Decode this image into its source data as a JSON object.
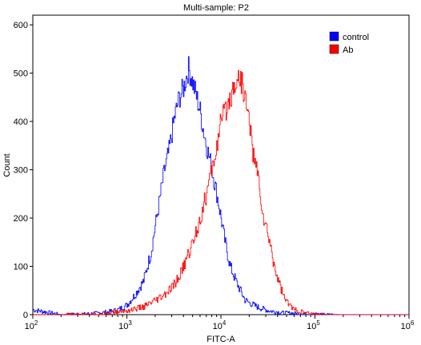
{
  "chart_data": {
    "type": "line",
    "title": "Multi-sample: P2",
    "xlabel": "FITC-A",
    "ylabel": "Count",
    "x_scale": "log",
    "xlim": [
      100,
      1000000
    ],
    "ylim": [
      0,
      620
    ],
    "x_ticks": [
      100,
      1000,
      10000,
      100000,
      1000000
    ],
    "x_tick_labels": [
      {
        "base": "10",
        "exp": "2"
      },
      {
        "base": "10",
        "exp": "3"
      },
      {
        "base": "10",
        "exp": "4"
      },
      {
        "base": "10",
        "exp": "5"
      },
      {
        "base": "10",
        "exp": "6"
      }
    ],
    "y_ticks": [
      0,
      100,
      200,
      300,
      400,
      500,
      600
    ],
    "grid": false,
    "legend_position": "top-right",
    "series": [
      {
        "name": "control",
        "color": "#0000ff",
        "x": [
          100,
          200,
          400,
          600,
          800,
          1000,
          1200,
          1500,
          1800,
          2100,
          2500,
          2800,
          3200,
          3600,
          4000,
          4500,
          5000,
          5500,
          6000,
          6500,
          7000,
          8000,
          9000,
          10000,
          11000,
          12500,
          14000,
          16000,
          18000,
          21000,
          25000,
          32000,
          45000,
          70000,
          200000,
          1000000
        ],
        "y": [
          10,
          0,
          2,
          5,
          10,
          20,
          40,
          70,
          130,
          210,
          300,
          340,
          410,
          450,
          470,
          510,
          480,
          450,
          420,
          380,
          350,
          300,
          250,
          200,
          150,
          100,
          75,
          50,
          30,
          22,
          15,
          8,
          4,
          2,
          0,
          0
        ]
      },
      {
        "name": "Ab",
        "color": "#ff0000",
        "x": [
          100,
          500,
          1000,
          1500,
          2000,
          2500,
          3000,
          3500,
          4000,
          5000,
          6000,
          7000,
          8000,
          9000,
          10000,
          11000,
          12000,
          13000,
          14000,
          15000,
          16000,
          17000,
          18000,
          19000,
          20000,
          22000,
          25000,
          28000,
          32000,
          36000,
          40000,
          45000,
          50000,
          55000,
          60000,
          70000,
          80000,
          100000,
          150000,
          1000000
        ],
        "y": [
          0,
          1,
          8,
          16,
          28,
          40,
          55,
          75,
          100,
          150,
          200,
          250,
          300,
          350,
          400,
          420,
          440,
          460,
          480,
          490,
          490,
          470,
          450,
          420,
          400,
          330,
          280,
          200,
          160,
          110,
          75,
          45,
          25,
          18,
          10,
          6,
          3,
          1,
          0,
          0
        ]
      }
    ]
  }
}
